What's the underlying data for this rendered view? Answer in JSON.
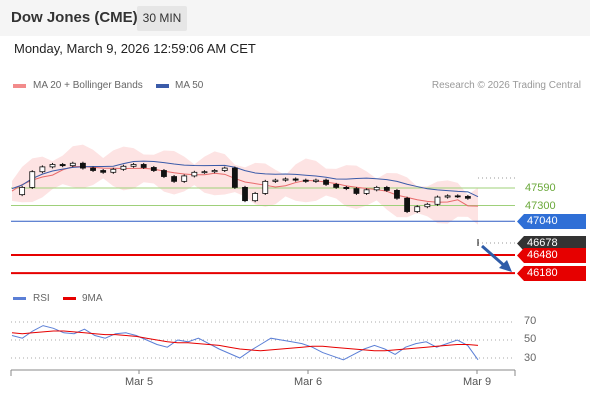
{
  "header": {
    "title": "Dow Jones (CME)",
    "timeframe": "30 MIN"
  },
  "datetime": "Monday, March 9, 2026 12:59:06 AM CET",
  "legend": {
    "ma20_bb": "MA 20 + Bollinger Bands",
    "ma50": "MA 50",
    "research": "Research © 2026 Trading Central"
  },
  "rsi_legend": {
    "rsi": "RSI",
    "ma9": "9MA"
  },
  "colors": {
    "bb_fill": "#fde3e3",
    "ma20": "#e86a6a",
    "ma50": "#3b5ba9",
    "support_red": "#e60000",
    "pivot_blue": "#2f5cc4",
    "res_green": "#7ab648",
    "last_price_bg": "#333333",
    "arrow": "#2f5ca8",
    "rsi_line": "#5b7fd6",
    "rsi_ma": "#e60000"
  },
  "levels": {
    "r2": "47590",
    "r1": "47300",
    "pivot": "47040",
    "last": "46678",
    "s1": "46480",
    "s2": "46180"
  },
  "chart_data": {
    "type": "candlestick",
    "x_labels": [
      "Mar 5",
      "Mar 6",
      "Mar 9"
    ],
    "price_levels": [
      {
        "name": "resistance 2",
        "value": 47590
      },
      {
        "name": "resistance 1",
        "value": 47300
      },
      {
        "name": "pivot",
        "value": 47040
      },
      {
        "name": "last",
        "value": 46678
      },
      {
        "name": "support 1",
        "value": 46480
      },
      {
        "name": "support 2",
        "value": 46180
      }
    ],
    "close_path": [
      47480,
      47600,
      47860,
      47940,
      47980,
      47960,
      48000,
      47920,
      47880,
      47850,
      47900,
      47950,
      47980,
      47930,
      47880,
      47780,
      47700,
      47790,
      47850,
      47860,
      47880,
      47920,
      47600,
      47380,
      47500,
      47700,
      47720,
      47740,
      47720,
      47700,
      47720,
      47650,
      47600,
      47580,
      47500,
      47560,
      47600,
      47550,
      47420,
      47200,
      47280,
      47320,
      47440,
      47460,
      47450,
      47420,
      46678
    ],
    "rsi": {
      "ticks": [
        70,
        50,
        30
      ],
      "values": [
        55,
        52,
        60,
        66,
        63,
        58,
        57,
        62,
        55,
        52,
        57,
        58,
        55,
        50,
        45,
        42,
        50,
        48,
        52,
        46,
        40,
        35,
        30,
        38,
        45,
        52,
        50,
        48,
        46,
        42,
        36,
        32,
        28,
        34,
        40,
        44,
        40,
        34,
        42,
        46,
        48,
        42,
        46,
        50,
        44,
        28
      ],
      "ma9": [
        58,
        57,
        58,
        59,
        60,
        60,
        59,
        58,
        57,
        56,
        56,
        55,
        54,
        52,
        50,
        48,
        47,
        47,
        46,
        45,
        44,
        42,
        40,
        39,
        38,
        39,
        40,
        41,
        42,
        43,
        43,
        42,
        41,
        40,
        39,
        38,
        38,
        39,
        40,
        41,
        42,
        43,
        44,
        45,
        45,
        44
      ]
    }
  }
}
